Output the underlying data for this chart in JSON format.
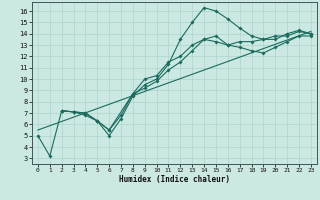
{
  "xlabel": "Humidex (Indice chaleur)",
  "xlim": [
    -0.5,
    23.5
  ],
  "ylim": [
    2.5,
    16.8
  ],
  "xticks": [
    0,
    1,
    2,
    3,
    4,
    5,
    6,
    7,
    8,
    9,
    10,
    11,
    12,
    13,
    14,
    15,
    16,
    17,
    18,
    19,
    20,
    21,
    22,
    23
  ],
  "yticks": [
    3,
    4,
    5,
    6,
    7,
    8,
    9,
    10,
    11,
    12,
    13,
    14,
    15,
    16
  ],
  "bg_color": "#cce8e3",
  "line_color": "#1a6b5e",
  "grid_color": "#aad4cc",
  "line1_x": [
    0,
    1,
    2,
    3,
    4,
    5,
    6,
    7,
    8,
    9,
    10,
    11,
    12,
    13,
    14,
    15,
    16,
    17,
    18,
    19,
    20,
    21,
    22,
    23
  ],
  "line1_y": [
    5.0,
    3.2,
    7.2,
    7.1,
    7.0,
    6.3,
    5.0,
    6.5,
    8.5,
    9.5,
    10.0,
    11.3,
    13.5,
    15.0,
    16.3,
    16.0,
    15.3,
    14.5,
    13.8,
    13.5,
    13.5,
    14.0,
    14.3,
    14.0
  ],
  "line2_x": [
    2,
    3,
    4,
    5,
    6,
    7,
    8,
    9,
    10,
    11,
    12,
    13,
    14,
    15,
    16,
    17,
    18,
    19,
    20,
    21,
    22,
    23
  ],
  "line2_y": [
    7.2,
    7.1,
    7.0,
    6.3,
    5.5,
    6.8,
    8.7,
    10.0,
    10.3,
    11.5,
    12.0,
    13.0,
    13.5,
    13.8,
    13.0,
    13.3,
    13.3,
    13.5,
    13.8,
    13.8,
    14.2,
    14.0
  ],
  "line3_x": [
    2,
    3,
    4,
    5,
    6,
    8,
    9,
    10,
    11,
    12,
    13,
    14,
    15,
    16,
    17,
    18,
    19,
    20,
    21,
    22,
    23
  ],
  "line3_y": [
    7.2,
    7.1,
    6.8,
    6.3,
    5.5,
    8.7,
    9.2,
    9.8,
    10.8,
    11.5,
    12.5,
    13.5,
    13.3,
    13.0,
    12.8,
    12.5,
    12.3,
    12.8,
    13.3,
    13.8,
    13.8
  ],
  "regline_x": [
    0,
    23
  ],
  "regline_y": [
    5.5,
    14.2
  ]
}
